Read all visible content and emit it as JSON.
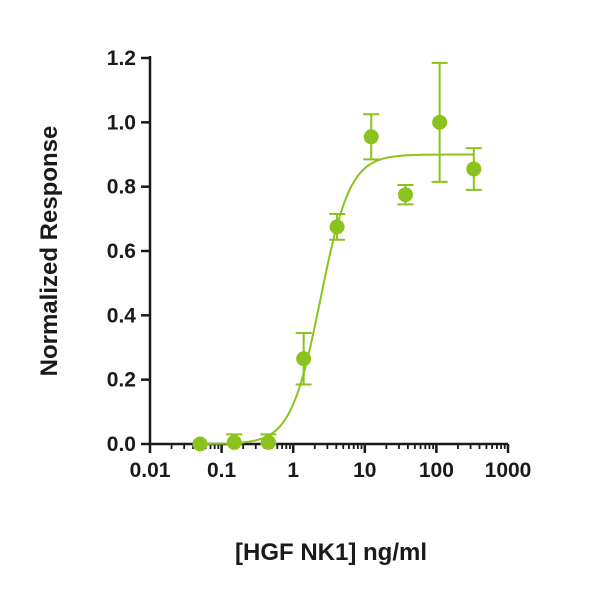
{
  "chart_data": {
    "type": "scatter",
    "title": "",
    "xlabel": "[HGF NK1] ng/ml",
    "ylabel": "Normalized Response",
    "x_scale": "log",
    "xlim": [
      0.01,
      1000
    ],
    "ylim": [
      0,
      1.2
    ],
    "x_ticks": [
      0.01,
      0.1,
      1,
      10,
      100,
      1000
    ],
    "x_tick_labels": [
      "0.01",
      "0.1",
      "1",
      "10",
      "100",
      "1000"
    ],
    "y_ticks": [
      0,
      0.2,
      0.4,
      0.6,
      0.8,
      1.0,
      1.2
    ],
    "y_tick_labels": [
      "0.0",
      "0.2",
      "0.4",
      "0.6",
      "0.8",
      "1.0",
      "1.2"
    ],
    "color": "#8cc21d",
    "grid": false,
    "legend": "none",
    "points": [
      {
        "x": 0.05,
        "y": 0.0,
        "err": 0
      },
      {
        "x": 0.15,
        "y": 0.005,
        "err": 0.025
      },
      {
        "x": 0.45,
        "y": 0.005,
        "err": 0.025
      },
      {
        "x": 1.4,
        "y": 0.265,
        "err": 0.08
      },
      {
        "x": 4.1,
        "y": 0.675,
        "err": 0.04
      },
      {
        "x": 12.3,
        "y": 0.955,
        "err": 0.07
      },
      {
        "x": 37,
        "y": 0.775,
        "err": 0.03
      },
      {
        "x": 111,
        "y": 1.0,
        "err": 0.185
      },
      {
        "x": 333,
        "y": 0.855,
        "err": 0.065
      }
    ],
    "fit_curve": {
      "type": "4PL",
      "bottom": 0.0,
      "top": 0.9,
      "ec50": 2.4,
      "hill": 2.1
    }
  }
}
